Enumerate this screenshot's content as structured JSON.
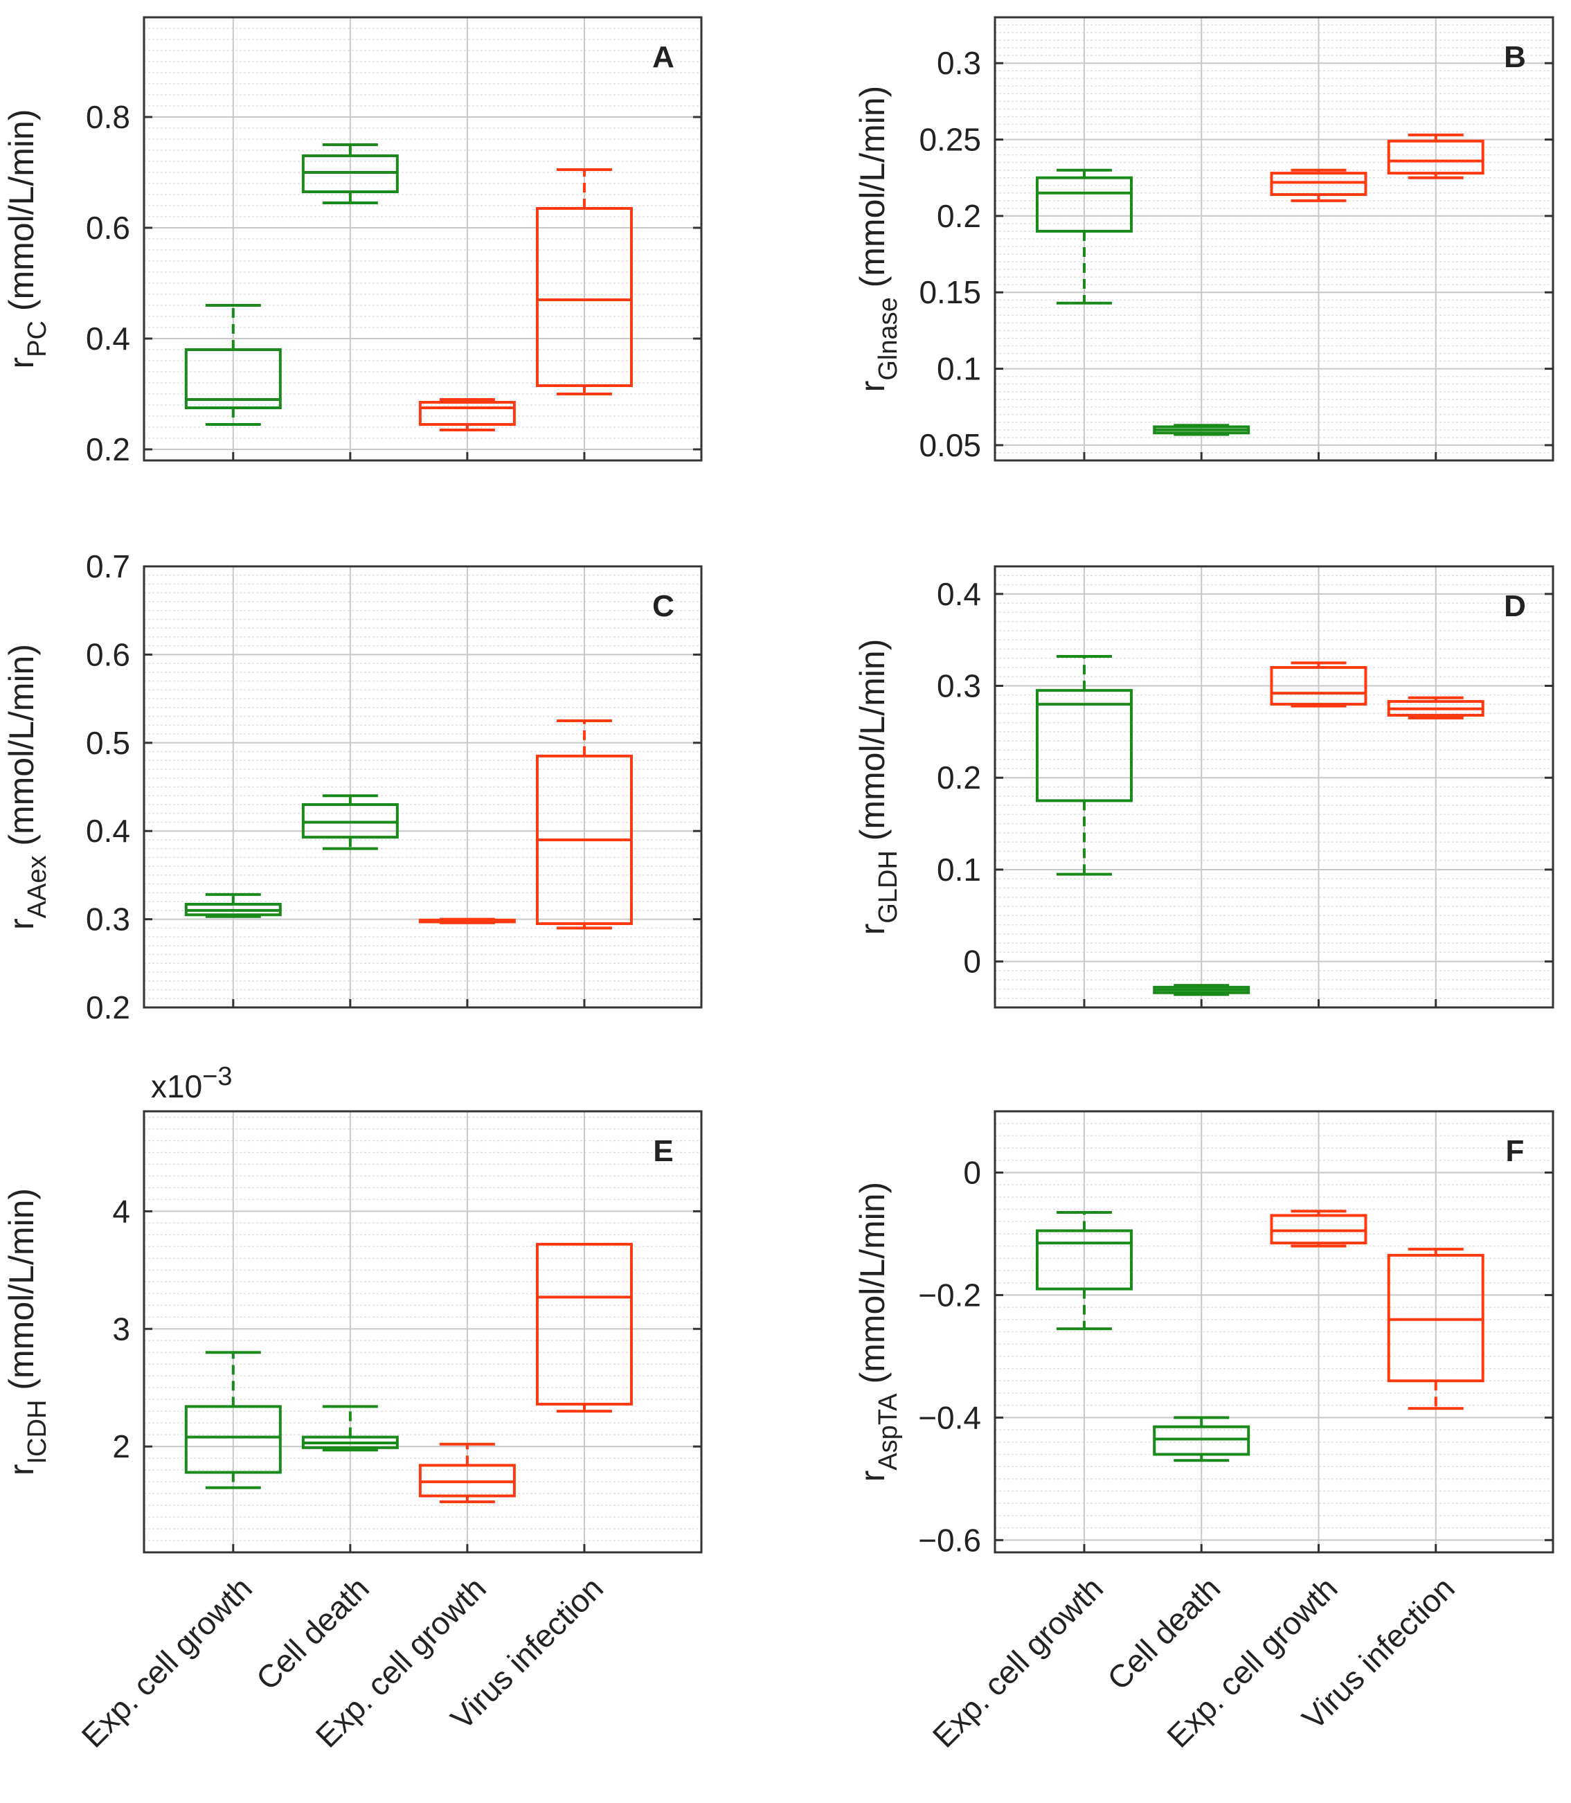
{
  "colors": {
    "green": "#1a8a1a",
    "red": "#ff3a10",
    "axis": "#333333",
    "grid_major": "#c8c8c8",
    "grid_minor": "#e0e0e0"
  },
  "categories": [
    "Exp. cell growth",
    "Cell death",
    "Exp. cell growth",
    "Virus infection"
  ],
  "chart_data": [
    {
      "type": "box",
      "panel": "A",
      "ylabel_main": "r",
      "ylabel_sub": "PC",
      "ylabel_unit": "(mmol/L/min)",
      "ylim": [
        0.18,
        0.98
      ],
      "yticks": [
        0.2,
        0.4,
        0.6,
        0.8
      ],
      "ytick_labels": [
        "0.2",
        "0.4",
        "0.6",
        "0.8"
      ],
      "categories": [
        "Exp. cell growth",
        "Cell death",
        "Exp. cell growth",
        "Virus infection"
      ],
      "boxes": [
        {
          "color": "green",
          "min": 0.245,
          "q1": 0.275,
          "median": 0.29,
          "q3": 0.38,
          "max": 0.46
        },
        {
          "color": "green",
          "min": 0.645,
          "q1": 0.665,
          "median": 0.7,
          "q3": 0.73,
          "max": 0.75
        },
        {
          "color": "red",
          "min": 0.235,
          "q1": 0.245,
          "median": 0.275,
          "q3": 0.285,
          "max": 0.29
        },
        {
          "color": "red",
          "min": 0.3,
          "q1": 0.315,
          "median": 0.47,
          "q3": 0.635,
          "max": 0.705
        }
      ]
    },
    {
      "type": "box",
      "panel": "B",
      "ylabel_main": "r",
      "ylabel_sub": "Glnase",
      "ylabel_unit": "(mmol/L/min)",
      "ylim": [
        0.04,
        0.33
      ],
      "yticks": [
        0.05,
        0.1,
        0.15,
        0.2,
        0.25,
        0.3
      ],
      "ytick_labels": [
        "0.05",
        "0.1",
        "0.15",
        "0.2",
        "0.25",
        "0.3"
      ],
      "categories": [
        "Exp. cell growth",
        "Cell death",
        "Exp. cell growth",
        "Virus infection"
      ],
      "boxes": [
        {
          "color": "green",
          "min": 0.143,
          "q1": 0.19,
          "median": 0.215,
          "q3": 0.225,
          "max": 0.23
        },
        {
          "color": "green",
          "min": 0.057,
          "q1": 0.058,
          "median": 0.06,
          "q3": 0.062,
          "max": 0.063
        },
        {
          "color": "red",
          "min": 0.21,
          "q1": 0.214,
          "median": 0.222,
          "q3": 0.228,
          "max": 0.23
        },
        {
          "color": "red",
          "min": 0.225,
          "q1": 0.228,
          "median": 0.236,
          "q3": 0.249,
          "max": 0.253
        }
      ]
    },
    {
      "type": "box",
      "panel": "C",
      "ylabel_main": "r",
      "ylabel_sub": "AAex",
      "ylabel_unit": "(mmol/L/min)",
      "ylim": [
        0.2,
        0.7
      ],
      "yticks": [
        0.2,
        0.3,
        0.4,
        0.5,
        0.6,
        0.7
      ],
      "ytick_labels": [
        "0.2",
        "0.3",
        "0.4",
        "0.5",
        "0.6",
        "0.7"
      ],
      "categories": [
        "Exp. cell growth",
        "Cell death",
        "Exp. cell growth",
        "Virus infection"
      ],
      "boxes": [
        {
          "color": "green",
          "min": 0.303,
          "q1": 0.305,
          "median": 0.31,
          "q3": 0.317,
          "max": 0.328
        },
        {
          "color": "green",
          "min": 0.38,
          "q1": 0.393,
          "median": 0.41,
          "q3": 0.43,
          "max": 0.44
        },
        {
          "color": "red",
          "min": 0.296,
          "q1": 0.297,
          "median": 0.298,
          "q3": 0.299,
          "max": 0.3
        },
        {
          "color": "red",
          "min": 0.29,
          "q1": 0.295,
          "median": 0.39,
          "q3": 0.485,
          "max": 0.525
        }
      ]
    },
    {
      "type": "box",
      "panel": "D",
      "ylabel_main": "r",
      "ylabel_sub": "GLDH",
      "ylabel_unit": "(mmol/L/min)",
      "ylim": [
        -0.05,
        0.43
      ],
      "yticks": [
        0,
        0.1,
        0.2,
        0.3,
        0.4
      ],
      "ytick_labels": [
        "0",
        "0.1",
        "0.2",
        "0.3",
        "0.4"
      ],
      "categories": [
        "Exp. cell growth",
        "Cell death",
        "Exp. cell growth",
        "Virus infection"
      ],
      "boxes": [
        {
          "color": "green",
          "min": 0.095,
          "q1": 0.175,
          "median": 0.28,
          "q3": 0.295,
          "max": 0.332
        },
        {
          "color": "green",
          "min": -0.036,
          "q1": -0.034,
          "median": -0.031,
          "q3": -0.028,
          "max": -0.026
        },
        {
          "color": "red",
          "min": 0.278,
          "q1": 0.28,
          "median": 0.292,
          "q3": 0.32,
          "max": 0.325
        },
        {
          "color": "red",
          "min": 0.265,
          "q1": 0.268,
          "median": 0.275,
          "q3": 0.283,
          "max": 0.287
        }
      ]
    },
    {
      "type": "box",
      "panel": "E",
      "ylabel_main": "r",
      "ylabel_sub": "ICDH",
      "ylabel_unit": "(mmol/L/min)",
      "ylim": [
        1.1,
        4.85
      ],
      "yticks": [
        2,
        3,
        4
      ],
      "ytick_labels": [
        "2",
        "3",
        "4"
      ],
      "exponent_label": "x10",
      "exponent_power": "−3",
      "categories": [
        "Exp. cell growth",
        "Cell death",
        "Exp. cell growth",
        "Virus infection"
      ],
      "boxes": [
        {
          "color": "green",
          "min": 1.65,
          "q1": 1.78,
          "median": 2.08,
          "q3": 2.34,
          "max": 2.8
        },
        {
          "color": "green",
          "min": 1.97,
          "q1": 1.99,
          "median": 2.03,
          "q3": 2.08,
          "max": 2.34
        },
        {
          "color": "red",
          "min": 1.53,
          "q1": 1.58,
          "median": 1.7,
          "q3": 1.84,
          "max": 2.02
        },
        {
          "color": "red",
          "min": 2.3,
          "q1": 2.36,
          "median": 3.27,
          "q3": 3.72,
          "max": 3.72
        }
      ]
    },
    {
      "type": "box",
      "panel": "F",
      "ylabel_main": "r",
      "ylabel_sub": "AspTA",
      "ylabel_unit": "(mmol/L/min)",
      "ylim": [
        -0.62,
        0.1
      ],
      "yticks": [
        -0.6,
        -0.4,
        -0.2,
        0
      ],
      "ytick_labels": [
        "−0.6",
        "−0.4",
        "−0.2",
        "0"
      ],
      "categories": [
        "Exp. cell growth",
        "Cell death",
        "Exp. cell growth",
        "Virus infection"
      ],
      "boxes": [
        {
          "color": "green",
          "min": -0.255,
          "q1": -0.19,
          "median": -0.115,
          "q3": -0.095,
          "max": -0.065
        },
        {
          "color": "green",
          "min": -0.47,
          "q1": -0.46,
          "median": -0.435,
          "q3": -0.415,
          "max": -0.4
        },
        {
          "color": "red",
          "min": -0.12,
          "q1": -0.115,
          "median": -0.095,
          "q3": -0.07,
          "max": -0.063
        },
        {
          "color": "red",
          "min": -0.385,
          "q1": -0.34,
          "median": -0.24,
          "q3": -0.135,
          "max": -0.125
        }
      ]
    }
  ]
}
